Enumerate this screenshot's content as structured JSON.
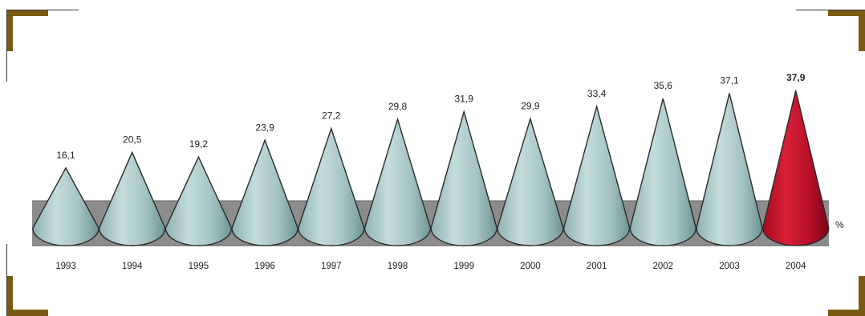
{
  "chart_data": {
    "type": "bar",
    "mark_shape": "cone",
    "categories": [
      "1993",
      "1994",
      "1995",
      "1996",
      "1997",
      "1998",
      "1999",
      "2000",
      "2001",
      "2002",
      "2003",
      "2004"
    ],
    "values": [
      16.1,
      20.5,
      19.2,
      23.9,
      27.2,
      29.8,
      31.9,
      29.9,
      33.4,
      35.6,
      37.1,
      37.9
    ],
    "value_labels": [
      "16,1",
      "20,5",
      "19,2",
      "23,9",
      "27,2",
      "29,8",
      "31,9",
      "29,9",
      "33,4",
      "35,6",
      "37,1",
      "37,9"
    ],
    "unit_label": "%",
    "highlight_category": "2004",
    "colors": {
      "cone": "#a9c7c7",
      "cone_dark": "#6f9696",
      "highlight": "#c8102e",
      "highlight_dark": "#7e0717",
      "band": "#8c8c8c",
      "frame": "#7a5a12"
    },
    "title": "",
    "xlabel": "",
    "ylabel": "",
    "grid": false,
    "legend": "none"
  }
}
